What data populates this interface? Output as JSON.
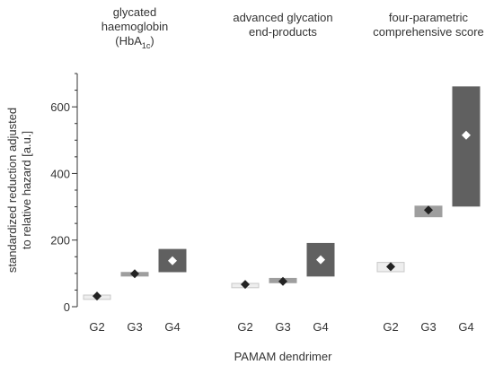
{
  "chart_data": {
    "type": "range-bar with marker",
    "ylabel_lines": [
      "standardized reduction adjusted",
      "to relative hazard [a.u.]"
    ],
    "xlabel": "PAMAM dendrimer",
    "ylim": [
      0,
      700
    ],
    "yticks": [
      0,
      200,
      400,
      600
    ],
    "minor_step": 50,
    "categories": [
      "G2",
      "G3",
      "G4"
    ],
    "colors": {
      "G2": {
        "fill": "#eeeeee",
        "stroke": "#c8c8c8"
      },
      "G3": {
        "fill": "#9e9e9e",
        "stroke": "#9e9e9e"
      },
      "G4": {
        "fill": "#606060",
        "stroke": "#606060"
      },
      "marker_dark": "#222222",
      "marker_light": "#ffffff"
    },
    "groups": [
      {
        "title_lines": [
          "glycated",
          "haemoglobin",
          "(HbA",
          "1c",
          ")"
        ],
        "title_parts": {
          "line1": "glycated",
          "line2": "haemoglobin",
          "line3_main": "(HbA",
          "line3_sub": "1c",
          "line3_end": ")"
        },
        "bars": [
          {
            "cat": "G2",
            "low": 22,
            "high": 35,
            "marker": 32
          },
          {
            "cat": "G3",
            "low": 92,
            "high": 103,
            "marker": 99
          },
          {
            "cat": "G4",
            "low": 105,
            "high": 172,
            "marker": 138
          }
        ]
      },
      {
        "title_parts": {
          "line1": "advanced glycation",
          "line2": "end-products"
        },
        "bars": [
          {
            "cat": "G2",
            "low": 57,
            "high": 70,
            "marker": 67
          },
          {
            "cat": "G3",
            "low": 72,
            "high": 85,
            "marker": 76
          },
          {
            "cat": "G4",
            "low": 92,
            "high": 190,
            "marker": 141
          }
        ]
      },
      {
        "title_parts": {
          "line1": "four-parametric",
          "line2": "comprehensive score"
        },
        "bars": [
          {
            "cat": "G2",
            "low": 105,
            "high": 133,
            "marker": 120
          },
          {
            "cat": "G3",
            "low": 270,
            "high": 302,
            "marker": 290
          },
          {
            "cat": "G4",
            "low": 302,
            "high": 660,
            "marker": 515
          }
        ]
      }
    ]
  }
}
